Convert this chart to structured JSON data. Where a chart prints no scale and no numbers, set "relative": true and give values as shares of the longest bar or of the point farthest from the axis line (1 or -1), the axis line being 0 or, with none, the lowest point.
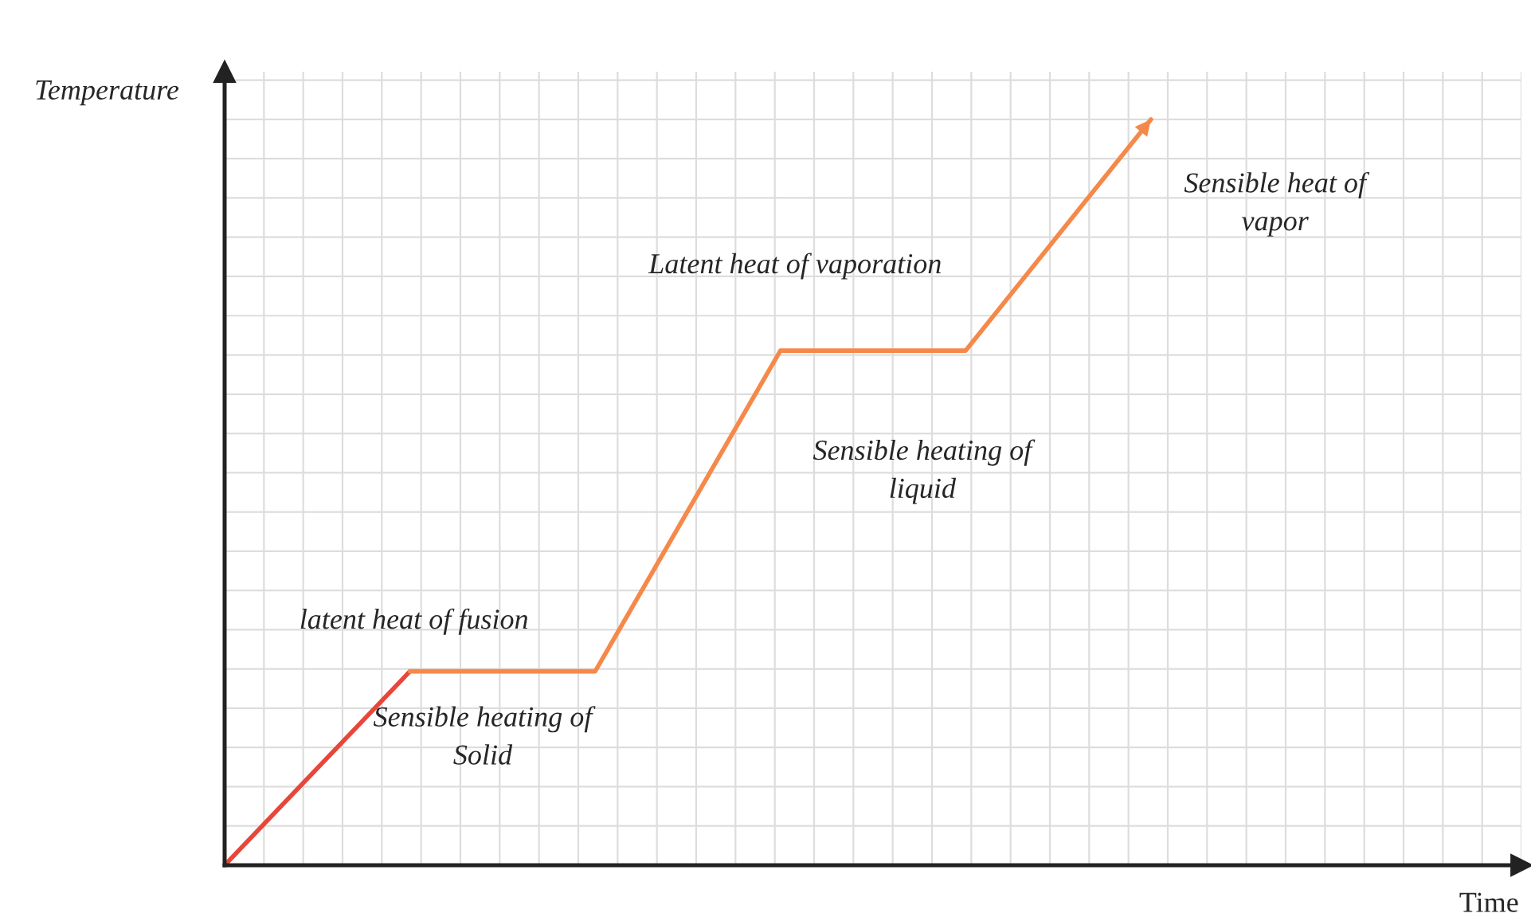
{
  "chart_data": {
    "type": "line",
    "relative": true,
    "ylabel": "Temperature",
    "grid": true,
    "marker": "none",
    "line_style": "solid",
    "categories": [
      null,
      null,
      null,
      null,
      null,
      null
    ],
    "series": [
      {
        "color": "#e8463a",
        "values": [
          0,
          0.26,
          null,
          null,
          null,
          null
        ]
      },
      {
        "color": "#f5894a",
        "values": [
          null,
          0.26,
          0.26,
          0.69,
          0.69,
          1.0
        ]
      }
    ],
    "annotations": [
      "latent heat of fusion",
      "Sensible heating of\nSolid",
      "Latent heat of vaporation",
      "Sensible heating of\nliquid",
      "Sensible heat of\nvapor",
      "Time"
    ]
  }
}
